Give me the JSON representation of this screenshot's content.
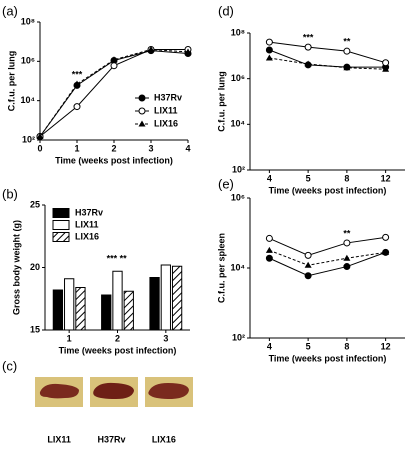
{
  "chart_data": [
    {
      "type": "line",
      "panel_label": "(a)",
      "ylabel": "C.f.u. per lung",
      "xlabel": "Time (weeks post infection)",
      "log_scale": true,
      "x": [
        0,
        1,
        2,
        3,
        4
      ],
      "xlim": [
        0,
        4
      ],
      "xticks": [
        0,
        1,
        2,
        3,
        4
      ],
      "ylim": [
        100,
        100000000
      ],
      "yticks": [
        {
          "value": 100,
          "label": "10²"
        },
        {
          "value": 10000,
          "label": "10⁴"
        },
        {
          "value": 1000000,
          "label": "10⁶"
        },
        {
          "value": 100000000,
          "label": "10⁸"
        }
      ],
      "legend": "lower-right",
      "series": [
        {
          "name": "H37Rv",
          "color": "#000000",
          "marker": "circle-filled",
          "dashed": false,
          "values": [
            150,
            60000,
            1100000,
            3500000,
            2500000
          ]
        },
        {
          "name": "LIX11",
          "color": "#000000",
          "marker": "circle-open",
          "dashed": false,
          "values": [
            150,
            5000,
            600000,
            4000000,
            4000000
          ]
        },
        {
          "name": "LIX16",
          "color": "#000000",
          "marker": "triangle",
          "dashed": true,
          "values": [
            150,
            70000,
            1200000,
            4000000,
            3000000
          ]
        }
      ],
      "annotations": [
        {
          "text": "***",
          "at": 1
        }
      ]
    },
    {
      "type": "bar",
      "panel_label": "(b)",
      "ylabel": "Gross body weight (g)",
      "xlabel": "Time (weeks post infection)",
      "categories": [
        "1",
        "2",
        "3"
      ],
      "ylim": [
        15,
        25
      ],
      "yticks": [
        15,
        20,
        25
      ],
      "legend": "upper-left",
      "series": [
        {
          "name": "H37Rv",
          "color": "#000000",
          "values": [
            18.2,
            17.8,
            19.2
          ]
        },
        {
          "name": "LIX11",
          "color": "#ffffff",
          "values": [
            19.1,
            19.7,
            20.2
          ]
        },
        {
          "name": "LIX16",
          "color": "#ffffff",
          "pattern": "hatch",
          "values": [
            18.4,
            18.1,
            20.1
          ]
        }
      ],
      "annotations": [
        {
          "text": "***",
          "at": "2"
        },
        {
          "text": "**",
          "at": "2"
        }
      ]
    },
    {
      "type": "image",
      "panel_label": "(c)",
      "labels": [
        "LIX11",
        "H37Rv",
        "LIX16"
      ]
    },
    {
      "type": "line",
      "panel_label": "(d)",
      "ylabel": "C.f.u. per lung",
      "xlabel": "Time (weeks post infection)",
      "log_scale": true,
      "categories": [
        "4",
        "5",
        "8",
        "12"
      ],
      "ylim": [
        100,
        100000000
      ],
      "yticks": [
        {
          "value": 100,
          "label": "10²"
        },
        {
          "value": 10000,
          "label": "10⁴"
        },
        {
          "value": 1000000,
          "label": "10⁶"
        },
        {
          "value": 100000000,
          "label": "10⁸"
        }
      ],
      "series": [
        {
          "name": "H37Rv",
          "color": "#000000",
          "marker": "circle-filled",
          "dashed": false,
          "values": [
            18000000,
            4000000,
            3200000,
            3200000
          ]
        },
        {
          "name": "LIX11",
          "color": "#000000",
          "marker": "circle-open",
          "dashed": false,
          "values": [
            40000000,
            24000000,
            16000000,
            5000000
          ]
        },
        {
          "name": "LIX16",
          "color": "#000000",
          "marker": "triangle",
          "dashed": true,
          "values": [
            8000000,
            4400000,
            3000000,
            2600000
          ]
        }
      ],
      "annotations": [
        {
          "text": "***",
          "at": "5"
        },
        {
          "text": "**",
          "at": "8"
        }
      ]
    },
    {
      "type": "line",
      "panel_label": "(e)",
      "ylabel": "C.f.u. per spleen",
      "xlabel": "Time (weeks post infection)",
      "log_scale": true,
      "categories": [
        "4",
        "5",
        "8",
        "12"
      ],
      "ylim": [
        100,
        1000000
      ],
      "yticks": [
        {
          "value": 100,
          "label": "10²"
        },
        {
          "value": 10000,
          "label": "10⁴"
        },
        {
          "value": 1000000,
          "label": "10⁶"
        }
      ],
      "series": [
        {
          "name": "H37Rv",
          "color": "#000000",
          "marker": "circle-filled",
          "dashed": false,
          "values": [
            19000,
            6000,
            11000,
            28000
          ]
        },
        {
          "name": "LIX11",
          "color": "#000000",
          "marker": "circle-open",
          "dashed": false,
          "values": [
            70000,
            23000,
            52000,
            75000
          ]
        },
        {
          "name": "LIX16",
          "color": "#000000",
          "marker": "triangle",
          "dashed": true,
          "values": [
            32000,
            12000,
            19000,
            28000
          ]
        }
      ],
      "annotations": [
        {
          "text": "**",
          "at": "8"
        }
      ]
    }
  ]
}
